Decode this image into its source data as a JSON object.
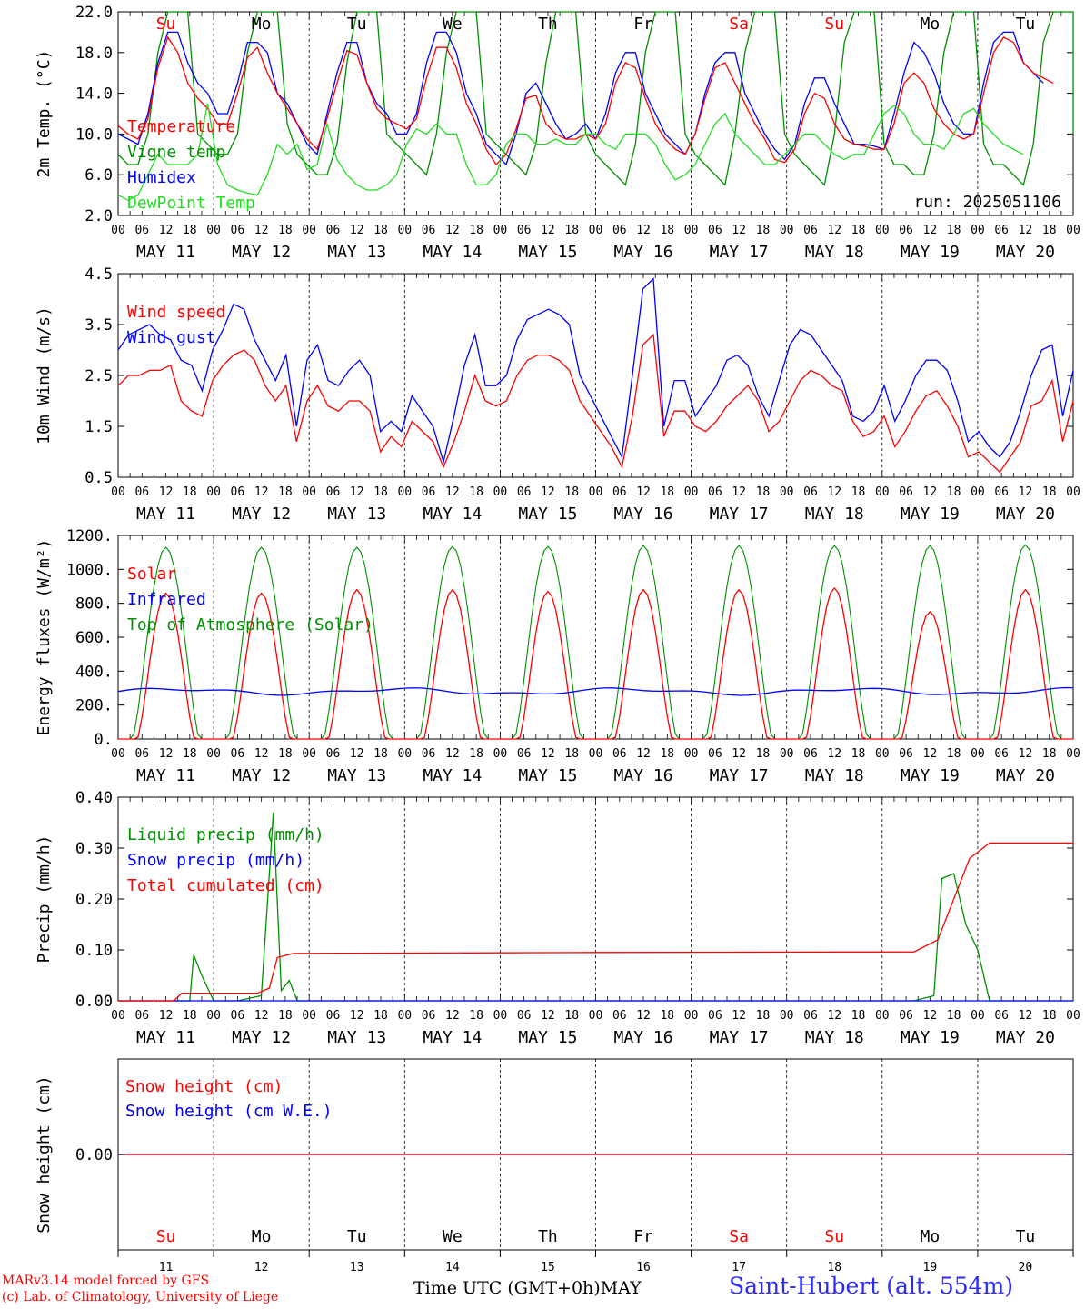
{
  "colors": {
    "red": "#ff0000",
    "green": "#008f00",
    "blue": "#0000ff",
    "lightgreen": "#22dd22",
    "black": "#000000"
  },
  "credits": {
    "line1": "MARv3.14 model forced by GFS",
    "line2": "(c) Lab. of Climatology, University of Liege"
  },
  "xlabel": "Time UTC (GMT+0h)",
  "month_label": "MAY",
  "station": "Saint-Hubert (alt. 554m)",
  "run_label": "run: 2025051106",
  "chart_data": [
    {
      "type": "line",
      "ylabel": "2m Temp. (°C)",
      "ylim": [
        2.0,
        22.0
      ],
      "yticks": [
        "2.0",
        "6.0",
        "10.0",
        "14.0",
        "18.0",
        "22.0"
      ],
      "day_names": [
        "Su",
        "Mo",
        "Tu",
        "We",
        "Th",
        "Fr",
        "Sa",
        "Su",
        "Mo",
        "Tu"
      ],
      "day_colors": [
        "red",
        "black",
        "black",
        "black",
        "black",
        "black",
        "red",
        "red",
        "black",
        "black"
      ],
      "hour_ticks": [
        "00",
        "06",
        "12",
        "18"
      ],
      "date_labels": [
        "MAY 11",
        "MAY 12",
        "MAY 13",
        "MAY 14",
        "MAY 15",
        "MAY 16",
        "MAY 17",
        "MAY 18",
        "MAY 19",
        "MAY 20"
      ],
      "x_hours_start": 0,
      "x_hours_end": 240,
      "x_step_hours": 3,
      "series": [
        {
          "name": "Vigne temp",
          "color": "green",
          "legend_color": "green",
          "values": [
            8,
            7,
            7,
            10,
            18,
            22,
            22,
            22,
            10,
            9,
            8,
            8,
            10,
            18,
            22,
            22,
            22,
            11,
            8,
            7,
            6,
            6,
            9,
            17,
            22,
            22,
            22,
            10,
            9,
            8,
            7,
            6,
            10,
            18,
            22,
            22,
            22,
            10,
            9,
            8,
            7,
            6,
            9,
            17,
            22,
            22,
            22,
            10,
            8,
            7,
            6,
            5,
            9,
            18,
            22,
            22,
            22,
            10,
            8,
            7,
            6,
            5,
            10,
            18,
            22,
            22,
            22,
            10,
            8,
            7,
            6,
            5,
            10,
            19,
            22,
            22,
            22,
            9,
            7,
            7,
            6,
            6,
            10,
            18,
            22,
            22,
            22,
            9,
            7,
            7,
            6,
            5,
            9,
            19,
            22,
            22,
            22,
            10,
            12,
            12,
            11
          ]
        },
        {
          "name": "Humidex",
          "color": "blue",
          "legend_color": "blue",
          "values": [
            10,
            9.5,
            9,
            12,
            17,
            20,
            20,
            17,
            15,
            14,
            12,
            12,
            15,
            19,
            19,
            18,
            14,
            13,
            11,
            9,
            8,
            12,
            16,
            19,
            19,
            15,
            13,
            12,
            10,
            10,
            12,
            17,
            20,
            20,
            18,
            14,
            12,
            9,
            8,
            7,
            10,
            14,
            15,
            13,
            11,
            9.5,
            10,
            11,
            9.5,
            12,
            16,
            18,
            18,
            14,
            12,
            10,
            9,
            8,
            10,
            14,
            17,
            18,
            18,
            14,
            12,
            10,
            8.5,
            7.5,
            9,
            13,
            15.5,
            15.5,
            13,
            11,
            9,
            9,
            8.8,
            8.5,
            12,
            16,
            19,
            18,
            16,
            13,
            11,
            10,
            10,
            15,
            19,
            20,
            20,
            17,
            16,
            15
          ]
        },
        {
          "name": "Temperature",
          "color": "red",
          "legend_color": "red",
          "values": [
            10.8,
            10,
            9.5,
            11.5,
            16.5,
            19.5,
            18,
            15,
            13.5,
            12.5,
            11,
            11,
            14,
            17.5,
            18.5,
            16,
            14,
            12.5,
            11,
            9.5,
            8.5,
            11.5,
            15,
            18.2,
            17.8,
            15,
            12.5,
            11.5,
            11,
            10.5,
            11.5,
            15.5,
            18.5,
            18.5,
            16.5,
            13,
            11,
            8.5,
            7,
            8,
            10.5,
            13.5,
            13.8,
            11,
            10,
            9.5,
            9.5,
            10,
            9.5,
            11,
            15,
            17,
            16.5,
            13.5,
            11,
            9.5,
            8.5,
            8,
            10,
            13.5,
            16.5,
            17,
            15,
            13,
            11,
            9.5,
            7.5,
            7.2,
            8.5,
            12,
            14,
            13.5,
            11,
            9.5,
            9,
            8.8,
            8.5,
            8.5,
            11,
            15,
            16,
            15,
            12.5,
            11,
            10,
            9.5,
            10,
            14,
            18,
            19.5,
            19,
            17,
            16,
            15.5,
            15
          ]
        },
        {
          "name": "DewPoint Temp",
          "color": "lightgreen",
          "legend_color": "lightgreen",
          "values": [
            4,
            3.5,
            4,
            6,
            8,
            7,
            7,
            7,
            8,
            13,
            7,
            5,
            4.5,
            4.2,
            4,
            6,
            9,
            8,
            9,
            6.5,
            7,
            11,
            7.5,
            6,
            5,
            4.5,
            4.5,
            5,
            6,
            9,
            10.5,
            10,
            11,
            10,
            10,
            7,
            5,
            5,
            6,
            9,
            10,
            10,
            9,
            9,
            9.5,
            9,
            9,
            10,
            10,
            9,
            8.5,
            10,
            10,
            10,
            9,
            7,
            5.5,
            6,
            7,
            9,
            11,
            12,
            10,
            9,
            8,
            7,
            7,
            8,
            9,
            10,
            10,
            9,
            8,
            7.5,
            8,
            8,
            10,
            12,
            12.8,
            12,
            10,
            9,
            9,
            8.5,
            10,
            12,
            12.5,
            11,
            10,
            9,
            8.5,
            8
          ]
        }
      ],
      "legend": [
        "Temperature",
        "Vigne temp",
        "Humidex",
        "DewPoint Temp"
      ]
    },
    {
      "type": "line",
      "ylabel": "10m Wind (m/s)",
      "ylim": [
        0.5,
        4.5
      ],
      "yticks": [
        "0.5",
        "1.5",
        "2.5",
        "3.5",
        "4.5"
      ],
      "series": [
        {
          "name": "Wind speed",
          "color": "red",
          "values": [
            2.3,
            2.5,
            2.5,
            2.6,
            2.6,
            2.7,
            2.0,
            1.8,
            1.7,
            2.4,
            2.7,
            2.9,
            3.0,
            2.8,
            2.3,
            2.0,
            2.3,
            1.2,
            2.0,
            2.3,
            1.9,
            1.8,
            2.0,
            2.0,
            1.8,
            1.0,
            1.3,
            1.1,
            1.6,
            1.4,
            1.2,
            0.7,
            1.2,
            1.8,
            2.5,
            2.0,
            1.9,
            2.0,
            2.5,
            2.8,
            2.9,
            2.9,
            2.8,
            2.6,
            2.0,
            1.7,
            1.4,
            1.1,
            0.7,
            1.7,
            3.1,
            3.3,
            1.3,
            1.8,
            1.8,
            1.5,
            1.4,
            1.6,
            1.9,
            2.1,
            2.3,
            2.0,
            1.4,
            1.6,
            2.0,
            2.4,
            2.6,
            2.5,
            2.3,
            2.2,
            1.6,
            1.3,
            1.4,
            1.7,
            1.1,
            1.4,
            1.8,
            2.1,
            2.2,
            1.9,
            1.5,
            0.9,
            1.0,
            0.8,
            0.6,
            0.9,
            1.2,
            1.9,
            2.0,
            2.4,
            1.2,
            2.0
          ]
        },
        {
          "name": "Wind gust",
          "color": "blue",
          "values": [
            3.0,
            3.3,
            3.4,
            3.5,
            3.3,
            3.2,
            2.8,
            2.7,
            2.2,
            3.0,
            3.4,
            3.9,
            3.8,
            3.2,
            2.8,
            2.4,
            2.9,
            1.5,
            2.8,
            3.1,
            2.4,
            2.3,
            2.6,
            2.8,
            2.5,
            1.4,
            1.6,
            1.4,
            2.1,
            1.8,
            1.5,
            0.8,
            1.7,
            2.7,
            3.3,
            2.3,
            2.3,
            2.5,
            3.2,
            3.6,
            3.7,
            3.8,
            3.7,
            3.5,
            2.5,
            2.1,
            1.7,
            1.3,
            0.9,
            2.5,
            4.2,
            4.4,
            1.5,
            2.4,
            2.4,
            1.7,
            2.0,
            2.3,
            2.8,
            2.9,
            2.7,
            2.1,
            1.7,
            2.4,
            3.1,
            3.4,
            3.3,
            3.0,
            2.7,
            2.4,
            1.7,
            1.6,
            1.8,
            2.3,
            1.6,
            2.0,
            2.5,
            2.8,
            2.8,
            2.6,
            2.0,
            1.2,
            1.4,
            1.1,
            0.9,
            1.2,
            1.8,
            2.5,
            3.0,
            3.1,
            1.7,
            2.6
          ]
        }
      ],
      "legend": [
        "Wind speed",
        "Wind gust"
      ]
    },
    {
      "type": "line",
      "ylabel": "Energy fluxes (W/m²)",
      "ylim": [
        0,
        1200
      ],
      "yticks": [
        "0.",
        "200.",
        "400.",
        "600.",
        "800.",
        "1000.",
        "1200."
      ],
      "series": [
        {
          "name": "Solar",
          "color": "red",
          "peak_values": [
            860,
            860,
            880,
            880,
            870,
            880,
            880,
            890,
            750,
            880
          ]
        },
        {
          "name": "Infrared",
          "color": "blue",
          "mean_value": 280
        },
        {
          "name": "Top of Atmosphere (Solar)",
          "color": "green",
          "peak_values": [
            1130,
            1130,
            1130,
            1135,
            1135,
            1140,
            1140,
            1140,
            1140,
            1145
          ]
        }
      ],
      "legend": [
        "Solar",
        "Infrared",
        "Top of Atmosphere (Solar)"
      ]
    },
    {
      "type": "line",
      "ylabel": "Precip (mm/h)",
      "ylim": [
        0.0,
        0.4
      ],
      "yticks": [
        "0.00",
        "0.10",
        "0.20",
        "0.30",
        "0.40"
      ],
      "series": [
        {
          "name": "Liquid precip (mm/h)",
          "color": "green",
          "points": [
            [
              0,
              0
            ],
            [
              18,
              0
            ],
            [
              19,
              0.09
            ],
            [
              21,
              0.05
            ],
            [
              24,
              0
            ],
            [
              30,
              0
            ],
            [
              36,
              0.01
            ],
            [
              39,
              0.37
            ],
            [
              41,
              0.02
            ],
            [
              43,
              0.04
            ],
            [
              45,
              0
            ],
            [
              240,
              0
            ],
            [
              200,
              0
            ],
            [
              205,
              0.01
            ],
            [
              207,
              0.24
            ],
            [
              210,
              0.25
            ],
            [
              213,
              0.15
            ],
            [
              216,
              0.1
            ],
            [
              219,
              0
            ],
            [
              240,
              0
            ]
          ]
        },
        {
          "name": "Snow precip (mm/h)",
          "color": "blue",
          "points": [
            [
              0,
              0
            ],
            [
              240,
              0
            ]
          ]
        },
        {
          "name": "Total cumulated (cm)",
          "color": "red",
          "points": [
            [
              0,
              0
            ],
            [
              14,
              0
            ],
            [
              16,
              0.015
            ],
            [
              35,
              0.015
            ],
            [
              38,
              0.025
            ],
            [
              40,
              0.085
            ],
            [
              44,
              0.093
            ],
            [
              120,
              0.095
            ],
            [
              200,
              0.096
            ],
            [
              206,
              0.12
            ],
            [
              210,
              0.2
            ],
            [
              214,
              0.28
            ],
            [
              219,
              0.31
            ],
            [
              240,
              0.31
            ]
          ]
        }
      ],
      "legend": [
        "Liquid precip (mm/h)",
        "Snow precip (mm/h)",
        "Total cumulated (cm)"
      ]
    },
    {
      "type": "line",
      "ylabel": "Snow height (cm)",
      "ytick": "0.00",
      "series": [
        {
          "name": "Snow height (cm)",
          "color": "red",
          "values": [
            0,
            0
          ]
        },
        {
          "name": "Snow height (cm W.E.)",
          "color": "blue",
          "values": [
            0,
            0
          ]
        }
      ],
      "legend": [
        "Snow height (cm)",
        "Snow height (cm W.E.)"
      ],
      "day_numbers": [
        "11",
        "12",
        "13",
        "14",
        "15",
        "16",
        "17",
        "18",
        "19",
        "20"
      ]
    }
  ]
}
